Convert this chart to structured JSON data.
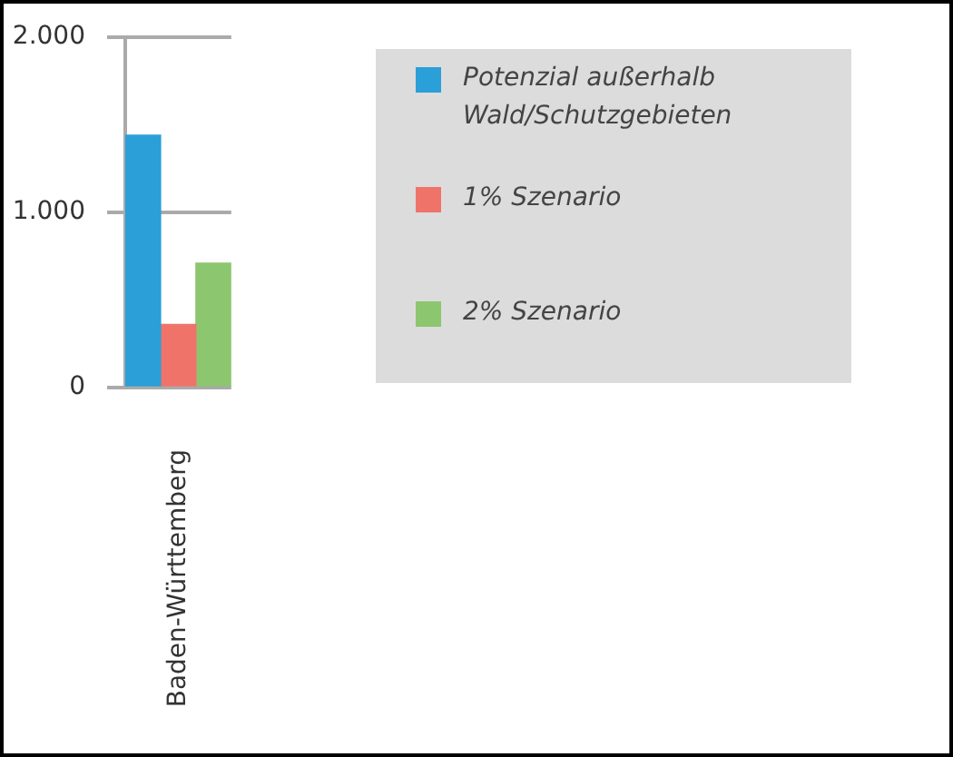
{
  "chart_data": {
    "type": "bar",
    "categories": [
      "Baden-Württemberg"
    ],
    "series": [
      {
        "name": "Potenzial außerhalb Wald/Schutzgebieten",
        "color": "#2b9fd8",
        "values": [
          1440
        ]
      },
      {
        "name": "1% Szenario",
        "color": "#f0736a",
        "values": [
          360
        ]
      },
      {
        "name": "2% Szenario",
        "color": "#8cc66e",
        "values": [
          710
        ]
      }
    ],
    "ylim": [
      0,
      2000
    ],
    "yticks": [
      {
        "value": 0,
        "label": "0"
      },
      {
        "value": 1000,
        "label": "1.000"
      },
      {
        "value": 2000,
        "label": "2.000"
      }
    ],
    "grid": "y",
    "legend": "right"
  }
}
